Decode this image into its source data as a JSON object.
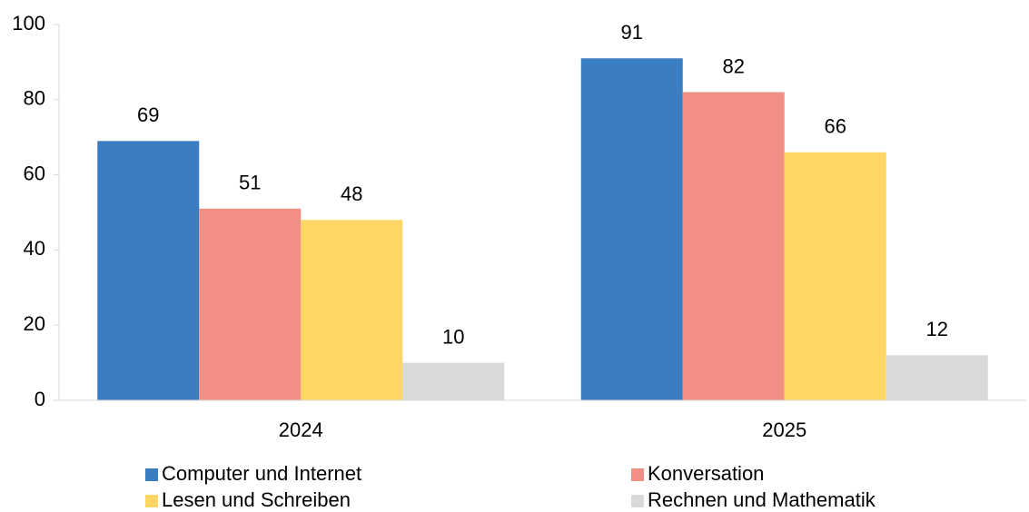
{
  "chart_data": {
    "type": "bar",
    "categories": [
      "2024",
      "2025"
    ],
    "series": [
      {
        "name": "Computer und Internet",
        "color": "#3a7dc1",
        "values": [
          69,
          91
        ]
      },
      {
        "name": "Konversation",
        "color": "#f28f85",
        "values": [
          51,
          82
        ]
      },
      {
        "name": "Lesen und Schreiben",
        "color": "#ffd666",
        "values": [
          48,
          66
        ]
      },
      {
        "name": "Rechnen und Mathematik",
        "color": "#d9d9d9",
        "values": [
          10,
          12
        ]
      }
    ],
    "ylim": [
      0,
      100
    ],
    "yticks": [
      0,
      20,
      40,
      60,
      80,
      100
    ],
    "grid": false,
    "legend": "bottom"
  }
}
